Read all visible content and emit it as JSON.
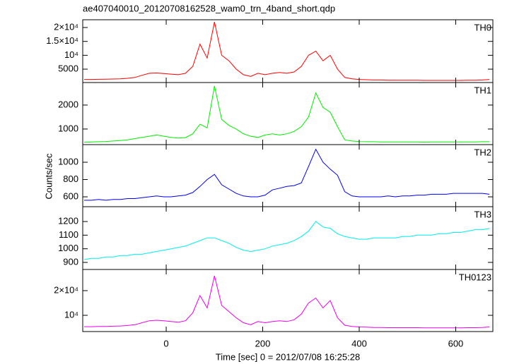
{
  "chart_data": [
    {
      "type": "line",
      "title": "ae407040010_20120708162528_wam0_trn_4band_short.qdp",
      "label": "TH0",
      "color": "#ff0000",
      "x": [
        -170,
        -155,
        -140,
        -125,
        -110,
        -95,
        -80,
        -65,
        -50,
        -35,
        -20,
        -5,
        10,
        25,
        40,
        55,
        70,
        85,
        100,
        115,
        130,
        145,
        160,
        175,
        190,
        205,
        220,
        235,
        250,
        265,
        280,
        295,
        310,
        325,
        340,
        355,
        370,
        385,
        400,
        415,
        430,
        445,
        460,
        475,
        490,
        505,
        520,
        535,
        550,
        565,
        580,
        595,
        610,
        625,
        640,
        655,
        670
      ],
      "values": [
        1300,
        1300,
        1350,
        1400,
        1450,
        1500,
        1700,
        2000,
        2800,
        3500,
        3600,
        3400,
        3200,
        3000,
        3500,
        6000,
        14000,
        9000,
        22000,
        10000,
        8000,
        5000,
        3000,
        2400,
        3500,
        3000,
        3500,
        3800,
        3500,
        4000,
        6000,
        10000,
        11500,
        8000,
        10000,
        5000,
        2000,
        1500,
        1300,
        1200,
        1100,
        1100,
        1000,
        1000,
        1000,
        1000,
        1000,
        950,
        950,
        950,
        950,
        950,
        950,
        1000,
        1000,
        1100,
        1300
      ],
      "xlim": [
        -173,
        677
      ],
      "ylim": [
        180,
        22800
      ],
      "yticks": [
        5000,
        {
          "value": 10000,
          "label": "10⁴"
        },
        {
          "value": 15000,
          "label": "1.5×10⁴"
        },
        {
          "value": 20000,
          "label": "2×10⁴"
        }
      ]
    },
    {
      "type": "line",
      "label": "TH1",
      "color": "#00ee00",
      "x": [
        -170,
        -155,
        -140,
        -125,
        -110,
        -95,
        -80,
        -65,
        -50,
        -35,
        -20,
        -5,
        10,
        25,
        40,
        55,
        70,
        85,
        100,
        115,
        130,
        145,
        160,
        175,
        190,
        205,
        220,
        235,
        250,
        265,
        280,
        295,
        310,
        325,
        340,
        355,
        370,
        385,
        400,
        415,
        430,
        445,
        460,
        475,
        490,
        505,
        520,
        535,
        550,
        565,
        580,
        595,
        610,
        625,
        640,
        655,
        670
      ],
      "values": [
        450,
        460,
        470,
        480,
        500,
        520,
        550,
        600,
        650,
        700,
        750,
        700,
        650,
        620,
        640,
        800,
        1200,
        1050,
        2800,
        1400,
        1150,
        1000,
        800,
        700,
        650,
        750,
        800,
        750,
        800,
        900,
        1100,
        1500,
        2500,
        1900,
        1700,
        1100,
        550,
        500,
        480,
        470,
        470,
        460,
        460,
        460,
        460,
        460,
        460,
        450,
        460,
        460,
        460,
        460,
        460,
        460,
        460,
        470,
        470
      ],
      "xlim": [
        -173,
        677
      ],
      "ylim": [
        350,
        2940
      ],
      "yticks": [
        1000,
        2000
      ]
    },
    {
      "type": "line",
      "label": "TH2",
      "color": "#0000ee",
      "ylabel": "Counts/sec",
      "x": [
        -170,
        -155,
        -140,
        -125,
        -110,
        -95,
        -80,
        -65,
        -50,
        -35,
        -20,
        -5,
        10,
        25,
        40,
        55,
        70,
        85,
        100,
        115,
        130,
        145,
        160,
        175,
        190,
        205,
        220,
        235,
        250,
        265,
        280,
        295,
        310,
        325,
        340,
        355,
        370,
        385,
        400,
        415,
        430,
        445,
        460,
        475,
        490,
        505,
        520,
        535,
        550,
        565,
        580,
        595,
        610,
        625,
        640,
        655,
        670
      ],
      "values": [
        560,
        560,
        570,
        560,
        570,
        570,
        580,
        580,
        590,
        600,
        610,
        600,
        600,
        610,
        620,
        650,
        720,
        800,
        860,
        740,
        690,
        640,
        610,
        600,
        600,
        620,
        680,
        700,
        720,
        730,
        760,
        950,
        1150,
        1000,
        920,
        850,
        660,
        610,
        600,
        600,
        600,
        600,
        610,
        600,
        610,
        610,
        620,
        620,
        630,
        630,
        630,
        640,
        640,
        640,
        640,
        640,
        630
      ],
      "xlim": [
        -173,
        677
      ],
      "ylim": [
        486,
        1204
      ],
      "yticks": [
        600,
        800,
        1000
      ]
    },
    {
      "type": "line",
      "label": "TH3",
      "color": "#00eeee",
      "x": [
        -170,
        -155,
        -140,
        -125,
        -110,
        -95,
        -80,
        -65,
        -50,
        -35,
        -20,
        -5,
        10,
        25,
        40,
        55,
        70,
        85,
        100,
        115,
        130,
        145,
        160,
        175,
        190,
        205,
        220,
        235,
        250,
        265,
        280,
        295,
        310,
        325,
        340,
        355,
        370,
        385,
        400,
        415,
        430,
        445,
        460,
        475,
        490,
        505,
        520,
        535,
        550,
        565,
        580,
        595,
        610,
        625,
        640,
        655,
        670
      ],
      "values": [
        920,
        930,
        930,
        940,
        940,
        950,
        950,
        960,
        960,
        970,
        980,
        990,
        1000,
        1010,
        1020,
        1040,
        1060,
        1080,
        1080,
        1060,
        1040,
        1010,
        990,
        980,
        990,
        1000,
        1020,
        1030,
        1040,
        1060,
        1090,
        1130,
        1200,
        1160,
        1150,
        1110,
        1090,
        1080,
        1070,
        1070,
        1080,
        1080,
        1080,
        1080,
        1090,
        1090,
        1100,
        1100,
        1100,
        1110,
        1110,
        1120,
        1120,
        1130,
        1140,
        1140,
        1150
      ],
      "xlim": [
        -173,
        677
      ],
      "ylim": [
        848,
        1309
      ],
      "yticks": [
        900,
        1000,
        1100,
        1200
      ]
    },
    {
      "type": "line",
      "label": "TH0123",
      "color": "#ee00ee",
      "xlabel": "Time [sec] 0 = 2012/07/08 16:25:28",
      "x": [
        -170,
        -155,
        -140,
        -125,
        -110,
        -95,
        -80,
        -65,
        -50,
        -35,
        -20,
        -5,
        10,
        25,
        40,
        55,
        70,
        85,
        100,
        115,
        130,
        145,
        160,
        175,
        190,
        205,
        220,
        235,
        250,
        265,
        280,
        295,
        310,
        325,
        340,
        355,
        370,
        385,
        400,
        415,
        430,
        445,
        460,
        475,
        490,
        505,
        520,
        535,
        550,
        565,
        580,
        595,
        610,
        625,
        640,
        655,
        670
      ],
      "values": [
        5400,
        5400,
        5500,
        5500,
        5600,
        5700,
        5900,
        6200,
        7000,
        7800,
        8000,
        7800,
        7500,
        7200,
        7800,
        11000,
        18000,
        13000,
        26000,
        14000,
        11500,
        9000,
        7000,
        6200,
        7500,
        7000,
        7500,
        7800,
        7500,
        8200,
        10500,
        15000,
        17000,
        13000,
        16000,
        9000,
        6000,
        5500,
        5300,
        5200,
        5100,
        5100,
        5000,
        5000,
        5000,
        5000,
        5000,
        4950,
        4950,
        4950,
        4950,
        4950,
        4950,
        5000,
        5000,
        5100,
        5300
      ],
      "xlim": [
        -173,
        677
      ],
      "ylim": [
        3430,
        28570
      ],
      "yticks": [
        {
          "value": 10000,
          "label": "10⁴"
        },
        {
          "value": 20000,
          "label": "2×10⁴"
        }
      ],
      "xticks": [
        0,
        200,
        400,
        600
      ]
    }
  ]
}
